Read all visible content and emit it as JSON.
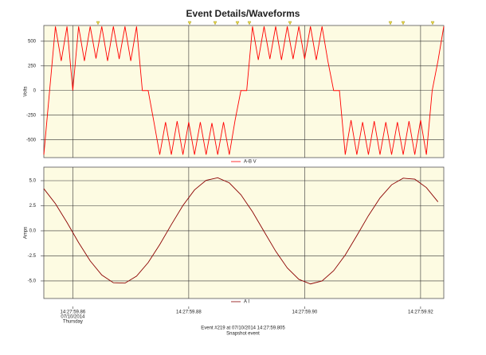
{
  "chart_data": [
    {
      "type": "line",
      "title": "Event Details/Waveforms",
      "ylabel": "Volts",
      "xlim": [
        59.855,
        59.924
      ],
      "ylim": [
        -680,
        660
      ],
      "yticks": [
        500,
        250,
        0,
        -250,
        -500
      ],
      "grid": true,
      "legend": "bottom",
      "x": [
        59.855,
        59.856,
        59.857,
        59.858,
        59.859,
        59.86,
        59.861,
        59.862,
        59.863,
        59.864,
        59.865,
        59.866,
        59.867,
        59.868,
        59.869,
        59.87,
        59.871,
        59.872,
        59.873,
        59.874,
        59.875,
        59.876,
        59.877,
        59.878,
        59.879,
        59.88,
        59.881,
        59.882,
        59.883,
        59.884,
        59.885,
        59.886,
        59.887,
        59.888,
        59.889,
        59.89,
        59.891,
        59.892,
        59.893,
        59.894,
        59.895,
        59.896,
        59.897,
        59.898,
        59.899,
        59.9,
        59.901,
        59.902,
        59.903,
        59.904,
        59.905,
        59.906,
        59.907,
        59.908,
        59.909,
        59.91,
        59.911,
        59.912,
        59.913,
        59.914,
        59.915,
        59.916,
        59.917,
        59.918,
        59.919,
        59.92,
        59.921,
        59.922,
        59.923,
        59.924
      ],
      "series": [
        {
          "name": "A-B V",
          "color": "#ff0000",
          "values": [
            -650,
            0,
            650,
            300,
            650,
            0,
            650,
            300,
            650,
            325,
            650,
            300,
            650,
            320,
            650,
            300,
            650,
            0,
            0,
            -320,
            -650,
            -320,
            -650,
            -310,
            -650,
            -320,
            -650,
            -320,
            -650,
            -330,
            -650,
            -320,
            -650,
            -300,
            0,
            0,
            650,
            310,
            650,
            320,
            650,
            310,
            650,
            320,
            650,
            320,
            650,
            310,
            650,
            300,
            0,
            0,
            -650,
            -300,
            -650,
            -320,
            -650,
            -310,
            -650,
            -320,
            -650,
            -320,
            -650,
            -310,
            -650,
            -300,
            -650,
            0,
            300,
            650
          ]
        }
      ]
    },
    {
      "type": "line",
      "ylabel": "Amps",
      "xlim": [
        59.855,
        59.924
      ],
      "ylim": [
        -6.75,
        6.35
      ],
      "yticks": [
        {
          "value": 5,
          "label": "5.0"
        },
        {
          "value": 2.5,
          "label": "2.5"
        },
        {
          "value": 0,
          "label": "0.0"
        },
        {
          "value": -2.5,
          "label": "-2.5"
        },
        {
          "value": -5,
          "label": "-5.0"
        }
      ],
      "xticks": [
        {
          "value": 59.86,
          "label": "14:27:59.86"
        },
        {
          "value": 59.88,
          "label": "14:27:59.88"
        },
        {
          "value": 59.9,
          "label": "14:27:59.90"
        },
        {
          "value": 59.92,
          "label": "14:27:59.92"
        }
      ],
      "x_date": "07/10/2014",
      "x_weekday": "Thursday",
      "grid": true,
      "legend": "bottom",
      "x": [
        59.855,
        59.857,
        59.859,
        59.861,
        59.863,
        59.865,
        59.867,
        59.869,
        59.871,
        59.873,
        59.875,
        59.877,
        59.879,
        59.881,
        59.883,
        59.885,
        59.887,
        59.889,
        59.891,
        59.893,
        59.895,
        59.897,
        59.899,
        59.901,
        59.903,
        59.905,
        59.907,
        59.909,
        59.911,
        59.913,
        59.915,
        59.917,
        59.919,
        59.921,
        59.923
      ],
      "series": [
        {
          "name": "A I",
          "color": "#8b0000",
          "values": [
            4.2,
            2.71,
            0.83,
            -1.17,
            -3.0,
            -4.41,
            -5.18,
            -5.22,
            -4.52,
            -3.17,
            -1.37,
            0.62,
            2.53,
            4.08,
            5.04,
            5.29,
            4.78,
            3.6,
            1.9,
            -0.07,
            -2.03,
            -3.7,
            -4.84,
            -5.3,
            -5.0,
            -3.98,
            -2.41,
            -0.48,
            1.51,
            3.28,
            4.59,
            5.25,
            5.15,
            4.31,
            2.89
          ]
        }
      ]
    }
  ],
  "footer": {
    "event": "Event #219 at 07/10/2014 14:27:59.805",
    "note": "Snapshot event"
  }
}
